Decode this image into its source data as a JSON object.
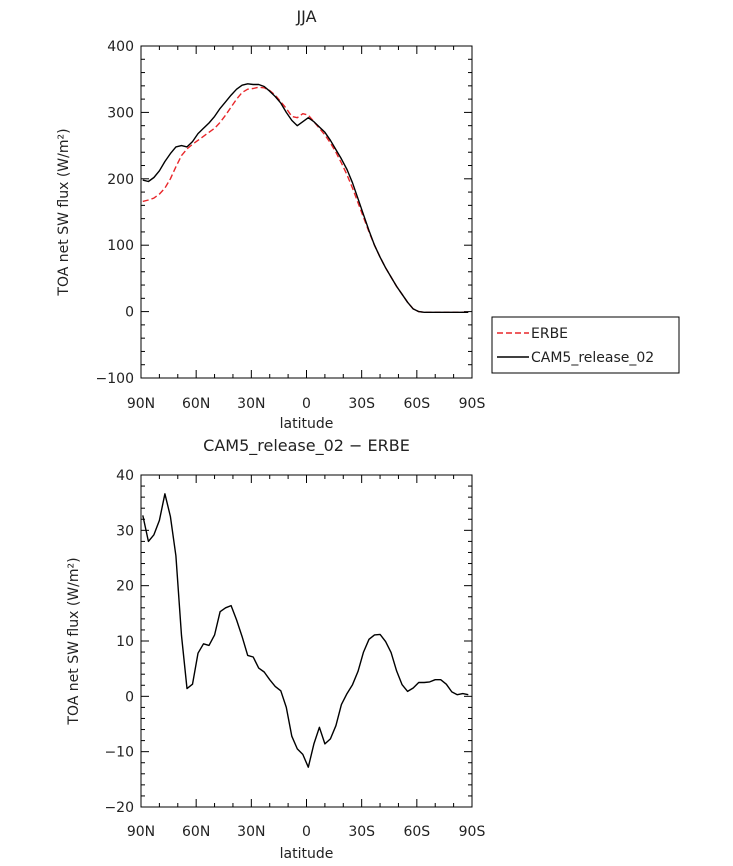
{
  "chart_data": [
    {
      "type": "line",
      "title": "JJA",
      "xlabel": "latitude",
      "ylabel": "TOA net SW flux (W/m²)",
      "xlim": [
        90,
        -90
      ],
      "ylim": [
        -100,
        400
      ],
      "xticks": [
        {
          "value": 90,
          "label": "90N"
        },
        {
          "value": 60,
          "label": "60N"
        },
        {
          "value": 30,
          "label": "30N"
        },
        {
          "value": 0,
          "label": "0"
        },
        {
          "value": -30,
          "label": "30S"
        },
        {
          "value": -60,
          "label": "60S"
        },
        {
          "value": -90,
          "label": "90S"
        }
      ],
      "yticks": [
        {
          "value": 400,
          "label": "400"
        },
        {
          "value": 300,
          "label": "300"
        },
        {
          "value": 200,
          "label": "200"
        },
        {
          "value": 100,
          "label": "100"
        },
        {
          "value": 0,
          "label": "0"
        },
        {
          "value": -100,
          "label": "−100"
        }
      ],
      "legend": "right",
      "series": [
        {
          "name": "ERBE",
          "color": "#e8262a",
          "style": "dashed",
          "x": [
            89,
            86,
            83,
            80,
            77,
            74,
            71,
            68,
            65,
            62,
            59,
            56,
            53,
            50,
            47,
            44,
            41,
            38,
            35,
            32,
            29,
            26,
            23,
            20,
            17,
            14,
            11,
            8,
            5,
            2,
            -1,
            -4,
            -7,
            -10,
            -13,
            -16,
            -19,
            -22,
            -25,
            -28,
            -31,
            -34,
            -37,
            -40,
            -43,
            -46,
            -49,
            -52,
            -55,
            -58,
            -61,
            -64,
            -67,
            -70,
            -73,
            -76,
            -79,
            -82,
            -85,
            -88
          ],
          "values": [
            166,
            168,
            171,
            177,
            186,
            200,
            218,
            235,
            245,
            252,
            258,
            264,
            270,
            276,
            285,
            296,
            308,
            320,
            330,
            335,
            336,
            338,
            337,
            333,
            326,
            316,
            306,
            294,
            292,
            298,
            296,
            286,
            276,
            266,
            254,
            240,
            224,
            206,
            186,
            164,
            142,
            120,
            100,
            82,
            66,
            52,
            38,
            26,
            14,
            4,
            0,
            -1,
            -1,
            -1,
            -1,
            -1,
            -1,
            -1,
            -1,
            -1
          ]
        },
        {
          "name": "CAM5_release_02",
          "color": "#000000",
          "style": "solid",
          "x": [
            89,
            86,
            83,
            80,
            77,
            74,
            71,
            68,
            65,
            62,
            59,
            56,
            53,
            50,
            47,
            44,
            41,
            38,
            35,
            32,
            29,
            26,
            23,
            20,
            17,
            14,
            11,
            8,
            5,
            2,
            -1,
            -4,
            -7,
            -10,
            -13,
            -16,
            -19,
            -22,
            -25,
            -28,
            -31,
            -34,
            -37,
            -40,
            -43,
            -46,
            -49,
            -52,
            -55,
            -58,
            -61,
            -64,
            -67,
            -70,
            -73,
            -76,
            -79,
            -82,
            -85,
            -88
          ],
          "values": [
            198,
            196,
            202,
            212,
            226,
            238,
            248,
            250,
            248,
            256,
            268,
            276,
            284,
            294,
            306,
            316,
            326,
            335,
            341,
            343,
            342,
            342,
            339,
            332,
            324,
            314,
            300,
            288,
            280,
            286,
            292,
            286,
            278,
            270,
            258,
            244,
            230,
            214,
            194,
            170,
            146,
            122,
            100,
            82,
            66,
            52,
            38,
            26,
            14,
            4,
            0,
            -1,
            -1,
            -1,
            -1,
            -1,
            -1,
            -1,
            -1,
            -1
          ]
        }
      ]
    },
    {
      "type": "line",
      "title": "CAM5_release_02 − ERBE",
      "xlabel": "latitude",
      "ylabel": "TOA net SW flux (W/m²)",
      "xlim": [
        90,
        -90
      ],
      "ylim": [
        -20,
        40
      ],
      "xticks": [
        {
          "value": 90,
          "label": "90N"
        },
        {
          "value": 60,
          "label": "60N"
        },
        {
          "value": 30,
          "label": "30N"
        },
        {
          "value": 0,
          "label": "0"
        },
        {
          "value": -30,
          "label": "30S"
        },
        {
          "value": -60,
          "label": "60S"
        },
        {
          "value": -90,
          "label": "90S"
        }
      ],
      "yticks": [
        {
          "value": 40,
          "label": "40"
        },
        {
          "value": 30,
          "label": "30"
        },
        {
          "value": 20,
          "label": "20"
        },
        {
          "value": 10,
          "label": "10"
        },
        {
          "value": 0,
          "label": "0"
        },
        {
          "value": -10,
          "label": "−10"
        },
        {
          "value": -20,
          "label": "−20"
        }
      ],
      "series": [
        {
          "color": "#000000",
          "style": "solid",
          "x": [
            89,
            86,
            83,
            80,
            77,
            74,
            71,
            68,
            65,
            62,
            59,
            56,
            53,
            50,
            47,
            44,
            41,
            38,
            35,
            32,
            29,
            26,
            23,
            20,
            17,
            14,
            11,
            8,
            5,
            2,
            -1,
            -4,
            -7,
            -10,
            -13,
            -16,
            -19,
            -22,
            -25,
            -28,
            -31,
            -34,
            -37,
            -40,
            -43,
            -46,
            -49,
            -52,
            -55,
            -58,
            -61,
            -64,
            -67,
            -70,
            -73,
            -76,
            -79,
            -82,
            -85,
            -88
          ],
          "values": [
            32.7,
            28.0,
            29.2,
            31.8,
            36.6,
            32.5,
            25.4,
            11.0,
            1.4,
            2.2,
            7.8,
            9.5,
            9.2,
            11.1,
            15.3,
            16.0,
            16.4,
            13.8,
            10.8,
            7.4,
            7.1,
            5.1,
            4.4,
            3.0,
            1.8,
            1.0,
            -2.0,
            -7.2,
            -9.5,
            -10.5,
            -12.8,
            -8.6,
            -5.6,
            -8.6,
            -7.7,
            -5.3,
            -1.5,
            0.5,
            2.1,
            4.5,
            8.0,
            10.3,
            11.1,
            11.2,
            9.9,
            7.9,
            4.6,
            2.1,
            0.9,
            1.5,
            2.5,
            2.5,
            2.6,
            3.0,
            3.0,
            2.2,
            0.8,
            0.3,
            0.5,
            0.3
          ]
        }
      ]
    }
  ]
}
